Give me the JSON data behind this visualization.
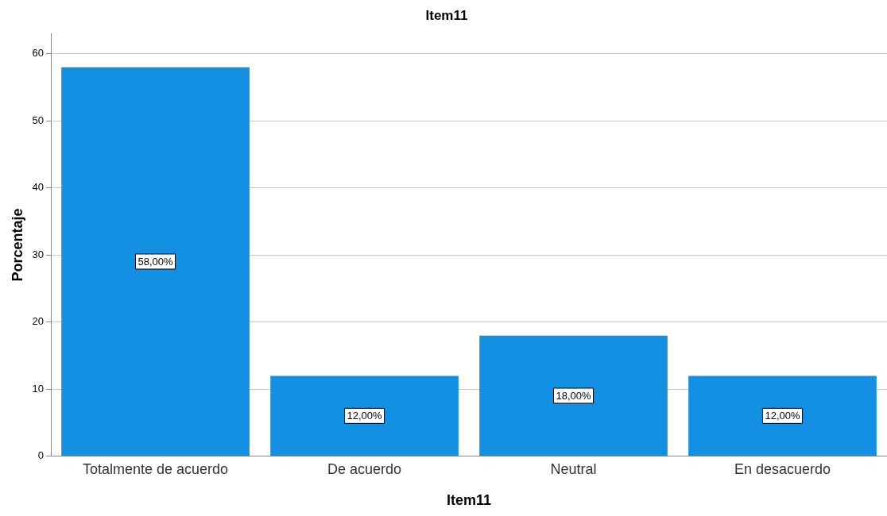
{
  "chart_data": {
    "type": "bar",
    "title": "Item11",
    "xlabel": "Item11",
    "ylabel": "Porcentaje",
    "categories": [
      "Totalmente de acuerdo",
      "De acuerdo",
      "Neutral",
      "En desacuerdo"
    ],
    "values": [
      58,
      12,
      18,
      12
    ],
    "value_labels": [
      "58,00%",
      "12,00%",
      "18,00%",
      "12,00%"
    ],
    "color": "#1490e3",
    "ylim": [
      0,
      63
    ],
    "yticks": [
      0,
      10,
      20,
      30,
      40,
      50,
      60
    ],
    "grid": "y",
    "legend": false
  }
}
